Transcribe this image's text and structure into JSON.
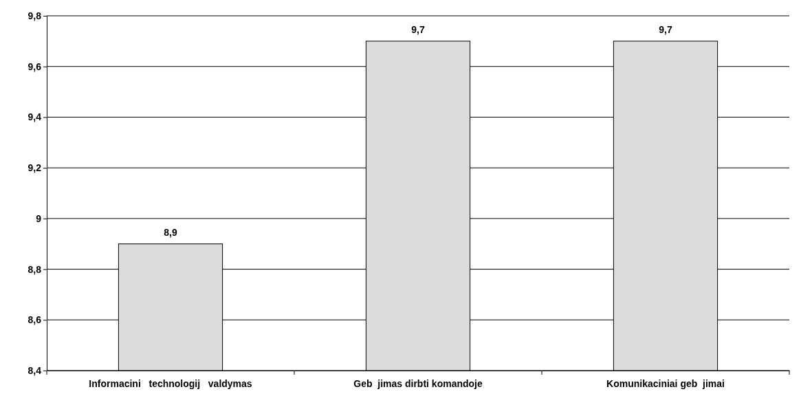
{
  "chart_data": {
    "type": "bar",
    "categories": [
      "Informacini   technologij   valdymas",
      "Geb  jimas dirbti komandoje",
      "Komunikaciniai geb  jimai"
    ],
    "values": [
      8.9,
      9.7,
      9.7
    ],
    "value_labels": [
      "8,9",
      "9,7",
      "9,7"
    ],
    "color": "#dcdcdc",
    "ylim": [
      8.4,
      9.8
    ],
    "yticks": [
      {
        "value": 8.4,
        "label": "8,4"
      },
      {
        "value": 8.6,
        "label": "8,6"
      },
      {
        "value": 8.8,
        "label": "8,8"
      },
      {
        "value": 9,
        "label": "9"
      },
      {
        "value": 9.2,
        "label": "9,2"
      },
      {
        "value": 9.4,
        "label": "9,4"
      },
      {
        "value": 9.6,
        "label": "9,6"
      },
      {
        "value": 9.8,
        "label": "9,8"
      }
    ],
    "grid": "y"
  }
}
